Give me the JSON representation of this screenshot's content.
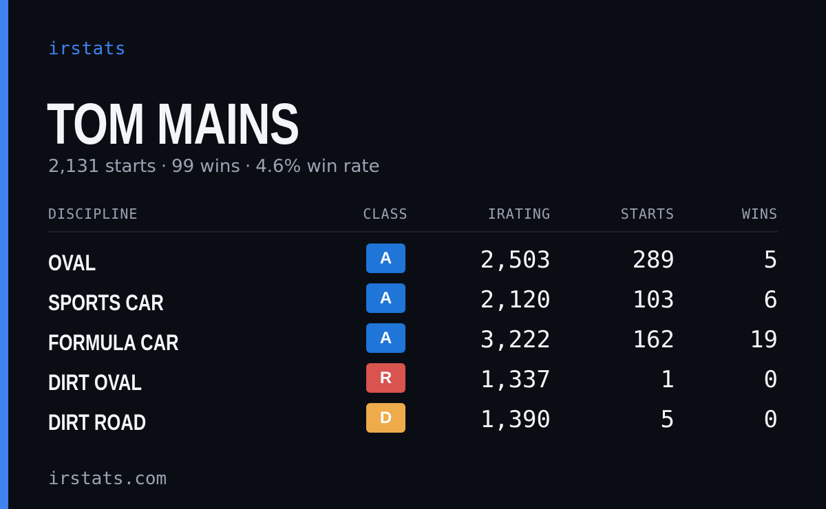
{
  "brand": "irstats",
  "player": {
    "name": "TOM MAINS",
    "starts_text": "2,131 starts",
    "wins_text": "99 wins",
    "winrate_text": "4.6% win rate",
    "separator": "·"
  },
  "table": {
    "headers": {
      "discipline": "DISCIPLINE",
      "class": "CLASS",
      "irating": "IRATING",
      "starts": "STARTS",
      "wins": "WINS"
    },
    "rows": [
      {
        "discipline": "OVAL",
        "class": "A",
        "class_color": "#1f75d8",
        "irating": "2,503",
        "starts": "289",
        "wins": "5"
      },
      {
        "discipline": "SPORTS CAR",
        "class": "A",
        "class_color": "#1f75d8",
        "irating": "2,120",
        "starts": "103",
        "wins": "6"
      },
      {
        "discipline": "FORMULA CAR",
        "class": "A",
        "class_color": "#1f75d8",
        "irating": "3,222",
        "starts": "162",
        "wins": "19"
      },
      {
        "discipline": "DIRT OVAL",
        "class": "R",
        "class_color": "#d9534f",
        "irating": "1,337",
        "starts": "1",
        "wins": "0"
      },
      {
        "discipline": "DIRT ROAD",
        "class": "D",
        "class_color": "#eeab4b",
        "irating": "1,390",
        "starts": "5",
        "wins": "0"
      }
    ]
  },
  "footer": "irstats.com",
  "colors": {
    "background": "#0b0d14",
    "accent": "#3f82f0",
    "muted_text": "#9aa3b2"
  }
}
